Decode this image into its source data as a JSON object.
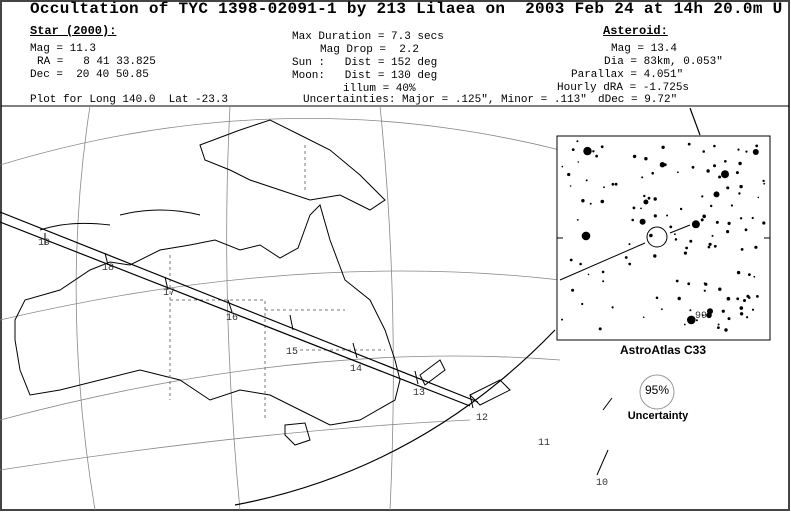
{
  "header": {
    "title": "Occultation of TYC 1398-02091-1 by 213 Lilaea on  2003 Feb 24 at 14h 20.0m U"
  },
  "star": {
    "heading": "Star (2000):",
    "mag": "Mag = 11.3",
    "ra": "RA =   8 41 33.825",
    "dec": "Dec =  20 40 50.85"
  },
  "event": {
    "max_duration": "Max Duration = 7.3 secs",
    "mag_drop": "Mag Drop =  2.2",
    "sun": "Sun :   Dist = 152 deg",
    "moon": "Moon:   Dist = 130 deg",
    "illum": "illum = 40%"
  },
  "asteroid": {
    "heading": "Asteroid:",
    "mag": "Mag = 13.4",
    "dia": "Dia = 83km, 0.053\"",
    "parallax": "Parallax = 4.051\"",
    "hourly_dra": "Hourly dRA = -1.725s",
    "ddec": "dDec = 9.72\""
  },
  "footer": {
    "plot_for": "Plot for Long 140.0  Lat -23.3",
    "uncertainties": "Uncertainties: Major = .125\", Minor = .113\""
  },
  "map": {
    "hour_labels": [
      "19",
      "18",
      "17",
      "16",
      "15",
      "14",
      "13",
      "12",
      "11",
      "10"
    ],
    "star_chart_label": "99",
    "chart_caption": "AstroAtlas C33",
    "uncertainty_percent": "95%",
    "uncertainty_label": "Uncertainty"
  }
}
